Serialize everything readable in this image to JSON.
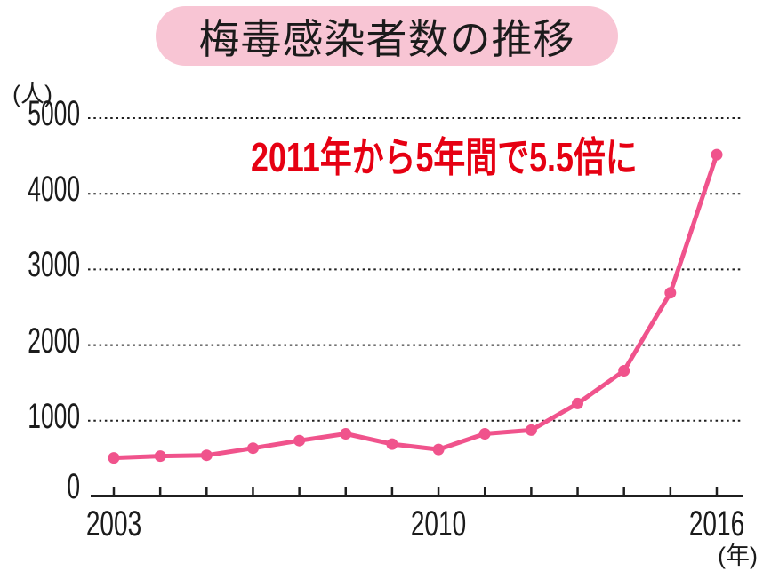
{
  "title": {
    "text": "梅毒感染者数の推移",
    "pill_color": "#f8c5d4",
    "text_color": "#1b1b1b"
  },
  "annotation": {
    "text": "2011年から5年間で5.5倍に",
    "color": "#e60012"
  },
  "axes": {
    "y_unit": "(人)",
    "x_unit": "(年)",
    "axis_color": "#1f1f1f"
  },
  "chart_data": {
    "type": "line",
    "title": "梅毒感染者数の推移",
    "annotation": "2011年から5年間で5.5倍に",
    "x": [
      2003,
      2004,
      2005,
      2006,
      2007,
      2008,
      2009,
      2010,
      2011,
      2012,
      2013,
      2014,
      2015,
      2016
    ],
    "values": [
      509,
      533,
      543,
      637,
      737,
      827,
      691,
      621,
      827,
      875,
      1228,
      1661,
      2690,
      4518
    ],
    "xlabel": "(年)",
    "ylabel": "(人)",
    "ylim": [
      0,
      5000
    ],
    "yticks": [
      0,
      1000,
      2000,
      3000,
      4000,
      5000
    ],
    "xticks_shown": [
      {
        "label": "2003",
        "index": 0
      },
      {
        "label": "2010",
        "index": 7
      },
      {
        "label": "2016",
        "index": 13
      }
    ],
    "grid": "dotted-horizontal",
    "legend": "none",
    "line_color": "#f0538c",
    "marker": "circle"
  }
}
